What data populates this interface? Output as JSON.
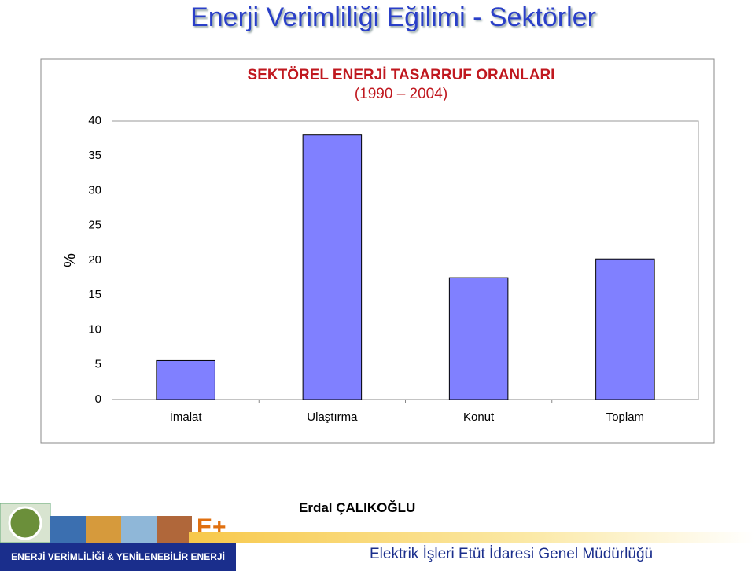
{
  "header": {
    "title": "Enerji Verimliliği Eğilimi - Sektörler"
  },
  "chart_data": {
    "type": "bar",
    "title": "SEKTÖREL ENERJİ TASARRUF ORANLARI",
    "subtitle": "(1990 – 2004)",
    "y_label": "%",
    "categories": [
      "İmalat",
      "Ulaştırma",
      "Konut",
      "Toplam"
    ],
    "values": [
      5.6,
      38,
      17.5,
      20.2
    ],
    "color": "#8080ff",
    "ylim": [
      0,
      40
    ],
    "yticks": [
      0,
      5,
      10,
      15,
      20,
      25,
      30,
      35,
      40
    ],
    "grid": false
  },
  "footer": {
    "author": "Erdal ÇALIKOĞLU",
    "banner": "ENERJİ VERİMLİLİĞİ & YENİLENEBİLİR ENERJİ",
    "organization": "Elektrik İşleri Etüt İdaresi Genel Müdürlüğü"
  }
}
